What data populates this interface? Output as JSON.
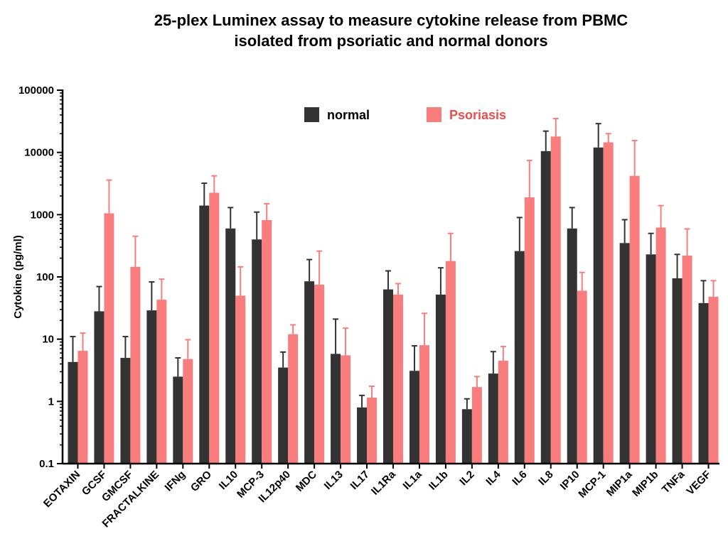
{
  "chart_data": {
    "type": "bar",
    "title_lines": [
      "25-plex Luminex assay to measure cytokine release from PBMC",
      "isolated from psoriatic and normal donors"
    ],
    "ylabel": "Cytokine (pg/ml)",
    "xlabel": "",
    "yscale": "log",
    "ylim": [
      0.1,
      100000
    ],
    "yticks": [
      "0.1",
      "1",
      "10",
      "100",
      "1000",
      "10000",
      "100000"
    ],
    "legend_position": "top-center",
    "grid": false,
    "categories": [
      "EOTAXIN",
      "GCSF",
      "GMCSF",
      "FRACTALKINE",
      "IFNg",
      "GRO",
      "IL10",
      "MCP-3",
      "IL12p40",
      "MDC",
      "IL13",
      "IL17",
      "IL1Ra",
      "IL1a",
      "IL1b",
      "IL2",
      "IL4",
      "IL6",
      "IL8",
      "IP10",
      "MCP-1",
      "MIP1a",
      "MIP1b",
      "TNFa",
      "VEGF"
    ],
    "series": [
      {
        "name": "normal",
        "color": "#333333",
        "values": [
          4.3,
          28,
          5,
          29,
          2.5,
          1400,
          600,
          400,
          3.5,
          85,
          5.8,
          0.8,
          63,
          3.1,
          52,
          0.75,
          2.8,
          260,
          10500,
          600,
          12000,
          350,
          230,
          95,
          38
        ],
        "error_upper": [
          11,
          70,
          11,
          83,
          5,
          3200,
          1300,
          1100,
          6.2,
          190,
          21,
          1.25,
          125,
          7.8,
          140,
          1.1,
          6.3,
          900,
          22000,
          1300,
          29000,
          830,
          500,
          230,
          87
        ]
      },
      {
        "name": "Psoriasis",
        "color": "#fa7d7d",
        "values": [
          6.5,
          1050,
          145,
          43,
          4.8,
          2250,
          50,
          820,
          12,
          75,
          5.5,
          1.15,
          52,
          8,
          180,
          1.7,
          4.5,
          1900,
          18000,
          60,
          14500,
          4200,
          620,
          220,
          48
        ],
        "error_upper": [
          12.5,
          3600,
          450,
          92,
          9.8,
          4200,
          145,
          1500,
          17,
          260,
          15,
          1.75,
          78,
          26,
          500,
          2.5,
          7.6,
          7400,
          35000,
          118,
          20000,
          15500,
          1400,
          590,
          87
        ]
      }
    ]
  }
}
